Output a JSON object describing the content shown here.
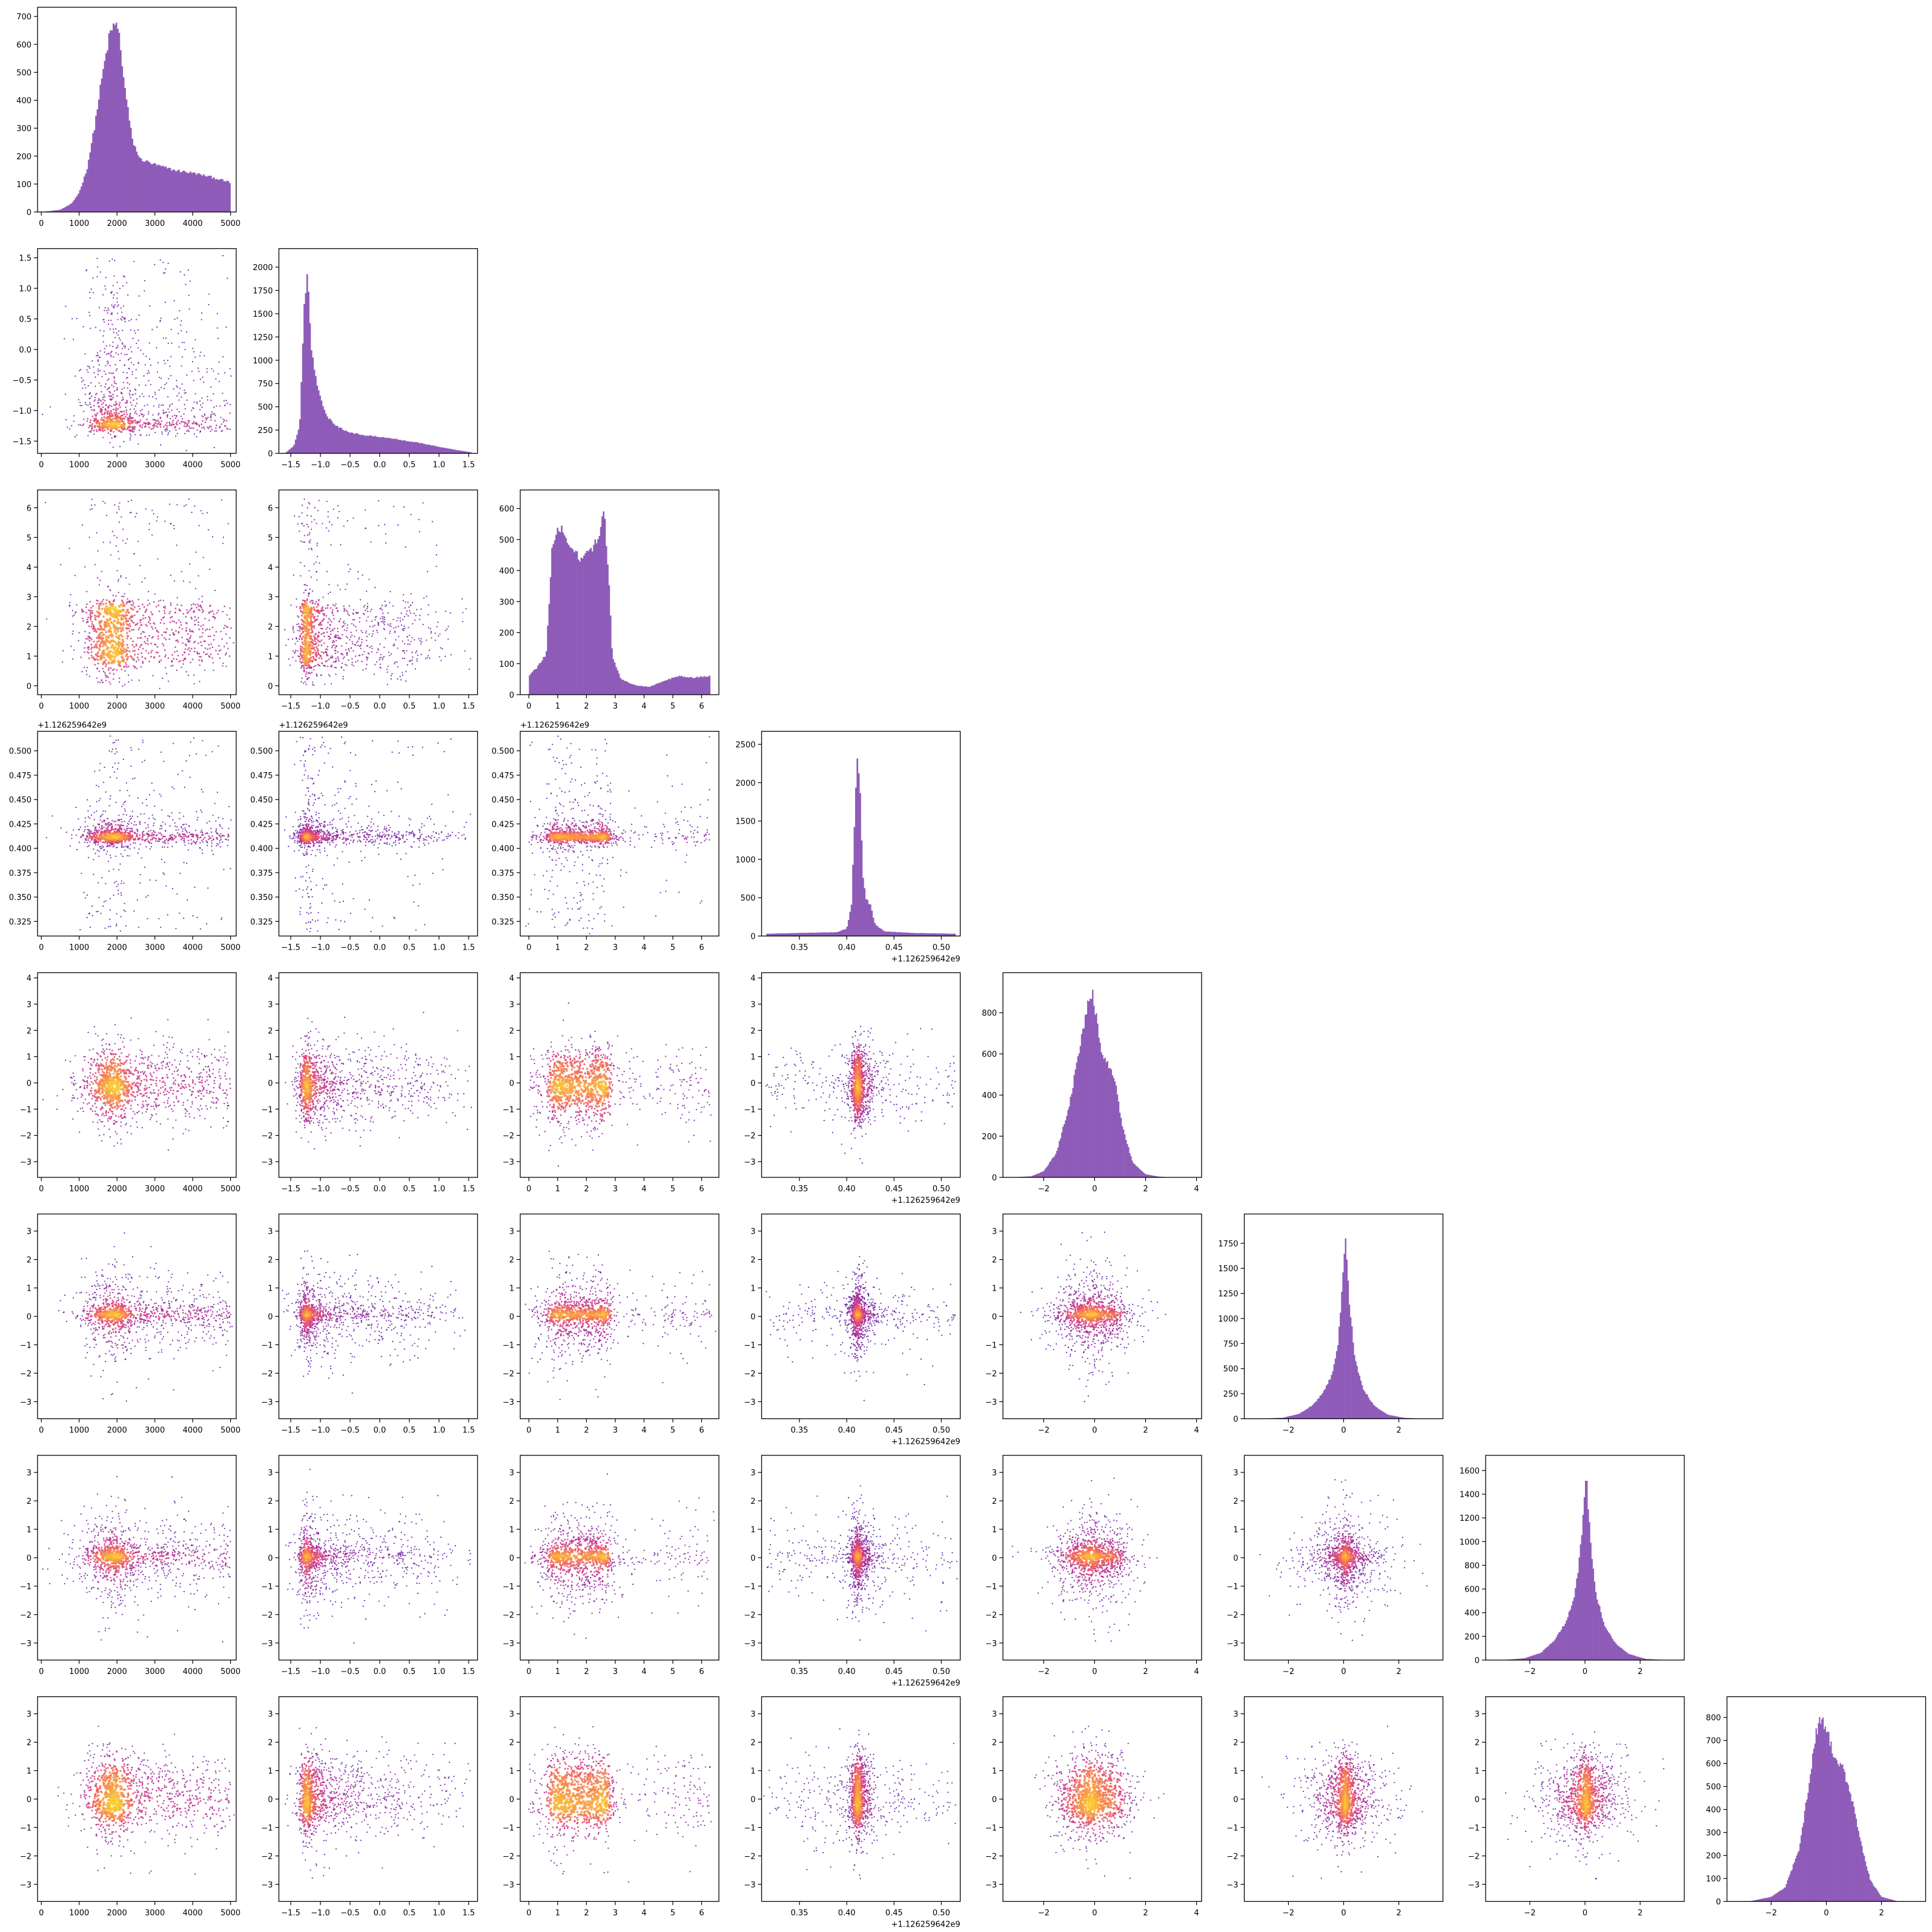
{
  "chart_data": {
    "type": "corner",
    "histogram_color": "#8e5cb8",
    "density_colormap": [
      "#3a0ca3",
      "#7a1fa2",
      "#c2308e",
      "#f0605d",
      "#f9a03f",
      "#fde725"
    ],
    "variables": [
      {
        "range": [
          -100,
          5150
        ],
        "ticks": [
          "0",
          "1000",
          "2000",
          "3000",
          "4000",
          "5000"
        ],
        "offset_label": ""
      },
      {
        "range": [
          -1.7,
          1.65
        ],
        "ticks": [
          "−1.5",
          "−1.0",
          "−0.5",
          "0.0",
          "0.5",
          "1.0",
          "1.5"
        ],
        "offset_label": ""
      },
      {
        "range": [
          -0.3,
          6.6
        ],
        "ticks": [
          "0",
          "1",
          "2",
          "3",
          "4",
          "5",
          "6"
        ],
        "offset_label": ""
      },
      {
        "range": [
          0.31,
          0.52
        ],
        "ticks": [
          "0.35",
          "0.40",
          "0.45",
          "0.50"
        ],
        "offset_label": "+1.126259642e9"
      },
      {
        "range": [
          -3.6,
          4.2
        ],
        "ticks": [
          "−2",
          "0",
          "2",
          "4"
        ],
        "offset_label": ""
      },
      {
        "range": [
          -3.6,
          3.6
        ],
        "ticks": [
          "−2",
          "0",
          "2"
        ],
        "offset_label": ""
      },
      {
        "range": [
          -3.6,
          3.6
        ],
        "ticks": [
          "−2",
          "0",
          "2"
        ],
        "offset_label": ""
      },
      {
        "range": [
          -3.6,
          3.6
        ],
        "ticks": [
          "−2",
          "0",
          "2"
        ],
        "offset_label": ""
      }
    ],
    "row_ticks": [
      [],
      [
        "−1.5",
        "−1.0",
        "−0.5",
        "0.0",
        "0.5",
        "1.0",
        "1.5"
      ],
      [
        "0",
        "1",
        "2",
        "3",
        "4",
        "5",
        "6"
      ],
      [
        "0.325",
        "0.350",
        "0.375",
        "0.400",
        "0.425",
        "0.450",
        "0.475",
        "0.500"
      ],
      [
        "−3",
        "−2",
        "−1",
        "0",
        "1",
        "2",
        "3",
        "4"
      ],
      [
        "−3",
        "−2",
        "−1",
        "0",
        "1",
        "2",
        "3"
      ],
      [
        "−3",
        "−2",
        "−1",
        "0",
        "1",
        "2",
        "3"
      ],
      [
        "−3",
        "−2",
        "−1",
        "0",
        "1",
        "2",
        "3"
      ]
    ],
    "histograms": [
      {
        "counts_max": 700,
        "yticks": [
          "0",
          "100",
          "200",
          "300",
          "400",
          "500",
          "600",
          "700"
        ],
        "x": [
          0,
          500,
          800,
          1000,
          1200,
          1400,
          1600,
          1800,
          1950,
          2050,
          2200,
          2400,
          2600,
          3000,
          3500,
          4000,
          4500,
          5000
        ],
        "counts": [
          0,
          8,
          30,
          70,
          150,
          300,
          480,
          630,
          680,
          640,
          450,
          260,
          190,
          170,
          150,
          140,
          125,
          105
        ]
      },
      {
        "counts_max": 2100,
        "yticks": [
          "0",
          "250",
          "500",
          "750",
          "1000",
          "1250",
          "1500",
          "1750",
          "2000"
        ],
        "x": [
          -1.6,
          -1.45,
          -1.35,
          -1.28,
          -1.22,
          -1.15,
          -1.05,
          -0.9,
          -0.7,
          -0.5,
          -0.2,
          0.1,
          0.4,
          0.7,
          1.0,
          1.3,
          1.55
        ],
        "counts": [
          0,
          80,
          300,
          1500,
          2000,
          1100,
          700,
          400,
          280,
          220,
          190,
          170,
          140,
          110,
          70,
          35,
          10
        ]
      },
      {
        "counts_max": 630,
        "yticks": [
          "0",
          "100",
          "200",
          "300",
          "400",
          "500",
          "600"
        ],
        "x": [
          0.0,
          0.3,
          0.6,
          0.8,
          1.0,
          1.2,
          1.5,
          1.8,
          2.1,
          2.4,
          2.6,
          2.75,
          2.9,
          3.2,
          3.7,
          4.2,
          4.7,
          5.2,
          5.7,
          6.3
        ],
        "counts": [
          60,
          90,
          130,
          460,
          550,
          520,
          480,
          440,
          460,
          500,
          600,
          420,
          120,
          50,
          30,
          25,
          45,
          60,
          55,
          60
        ]
      },
      {
        "counts_max": 2550,
        "yticks": [
          "0",
          "500",
          "1000",
          "1500",
          "2000",
          "2500"
        ],
        "x": [
          0.315,
          0.35,
          0.39,
          0.4,
          0.405,
          0.408,
          0.411,
          0.414,
          0.417,
          0.42,
          0.425,
          0.43,
          0.44,
          0.47,
          0.515
        ],
        "counts": [
          30,
          40,
          50,
          100,
          400,
          1400,
          2350,
          1900,
          800,
          500,
          400,
          150,
          60,
          40,
          30
        ]
      },
      {
        "counts_max": 950,
        "yticks": [
          "0",
          "200",
          "400",
          "600",
          "800"
        ],
        "x": [
          -3.3,
          -2.5,
          -2.0,
          -1.5,
          -1.0,
          -0.6,
          -0.3,
          -0.1,
          0.1,
          0.3,
          0.5,
          0.8,
          1.1,
          1.5,
          2.0,
          2.5,
          3.0
        ],
        "counts": [
          0,
          5,
          30,
          120,
          350,
          620,
          830,
          900,
          760,
          580,
          560,
          470,
          240,
          70,
          15,
          4,
          0
        ]
      },
      {
        "counts_max": 1950,
        "yticks": [
          "0",
          "250",
          "500",
          "750",
          "1000",
          "1250",
          "1500",
          "1750"
        ],
        "x": [
          -3.0,
          -2.2,
          -1.6,
          -1.1,
          -0.7,
          -0.4,
          -0.2,
          -0.05,
          0.05,
          0.2,
          0.4,
          0.7,
          1.1,
          1.6,
          2.2,
          3.0
        ],
        "counts": [
          0,
          10,
          50,
          140,
          280,
          450,
          750,
          1300,
          1850,
          1200,
          600,
          300,
          130,
          40,
          8,
          0
        ]
      },
      {
        "counts_max": 1650,
        "yticks": [
          "0",
          "200",
          "400",
          "600",
          "800",
          "1000",
          "1200",
          "1400",
          "1600"
        ],
        "x": [
          -3.0,
          -2.2,
          -1.6,
          -1.1,
          -0.7,
          -0.4,
          -0.2,
          -0.05,
          0.05,
          0.2,
          0.4,
          0.7,
          1.1,
          1.6,
          2.2,
          3.0
        ],
        "counts": [
          0,
          15,
          60,
          170,
          320,
          520,
          850,
          1250,
          1550,
          1000,
          560,
          300,
          140,
          50,
          10,
          0
        ]
      },
      {
        "counts_max": 850,
        "yticks": [
          "0",
          "100",
          "200",
          "300",
          "400",
          "500",
          "600",
          "700",
          "800"
        ],
        "x": [
          -2.8,
          -2.0,
          -1.5,
          -1.0,
          -0.7,
          -0.4,
          -0.2,
          0.0,
          0.2,
          0.4,
          0.6,
          0.9,
          1.2,
          1.6,
          2.0,
          2.6
        ],
        "counts": [
          0,
          20,
          60,
          220,
          450,
          720,
          800,
          760,
          660,
          610,
          580,
          460,
          280,
          90,
          20,
          0
        ]
      }
    ],
    "xlabel": "",
    "ylabel": ""
  }
}
